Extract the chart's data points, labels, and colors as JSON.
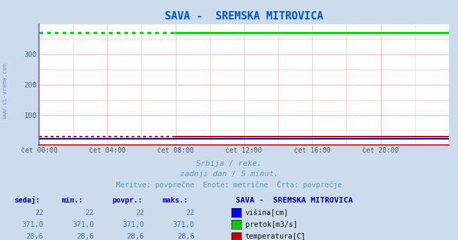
{
  "title": "SAVA -  SREMSKA MITROVICA",
  "title_color": "#0055cc",
  "bg_color": "#ccdcec",
  "plot_bg_color": "#ffffff",
  "grid_color": "#ffbbbb",
  "spine_left_color": "#6666cc",
  "spine_bottom_color": "#cc0000",
  "x_labels": [
    "čet 00:00",
    "čet 04:00",
    "čet 08:00",
    "čet 12:00",
    "čet 16:00",
    "čet 20:00"
  ],
  "x_ticks": [
    0,
    4,
    8,
    12,
    16,
    20
  ],
  "xlim": [
    0,
    24
  ],
  "ylim": [
    0,
    400
  ],
  "yticks": [
    100,
    200,
    300
  ],
  "visina_value": 22,
  "visina_color": "#0000ff",
  "pretok_value": 371.0,
  "pretok_color": "#00cc00",
  "temp_value": 28.6,
  "temp_color": "#cc0000",
  "dotted_end": 8,
  "subtitle1": "Srbija / reke.",
  "subtitle2": "zadnji dan / 5 minut.",
  "subtitle3": "Meritve: povprečne  Enote: metrične  Črta: povprečje",
  "subtitle_color": "#5599bb",
  "table_header_color": "#0000cc",
  "table_value_color": "#3377aa",
  "watermark": "www.si-vreme.com",
  "watermark_color": "#7799bb",
  "legend_title": "SAVA -  SREMSKA MITROVICA",
  "legend_title_color": "#0000aa",
  "col_headers": [
    "sedaj:",
    "min.:",
    "povpr.:",
    "maks.:"
  ],
  "row1_values": [
    "22",
    "22",
    "22",
    "22"
  ],
  "row2_values": [
    "371,0",
    "371,0",
    "371,0",
    "371,0"
  ],
  "row3_values": [
    "28,6",
    "28,6",
    "28,6",
    "28,6"
  ],
  "row_labels": [
    "višina[cm]",
    "pretok[m3/s]",
    "temperatura[C]"
  ],
  "box_colors": [
    "#0000ff",
    "#00cc00",
    "#cc0000"
  ]
}
